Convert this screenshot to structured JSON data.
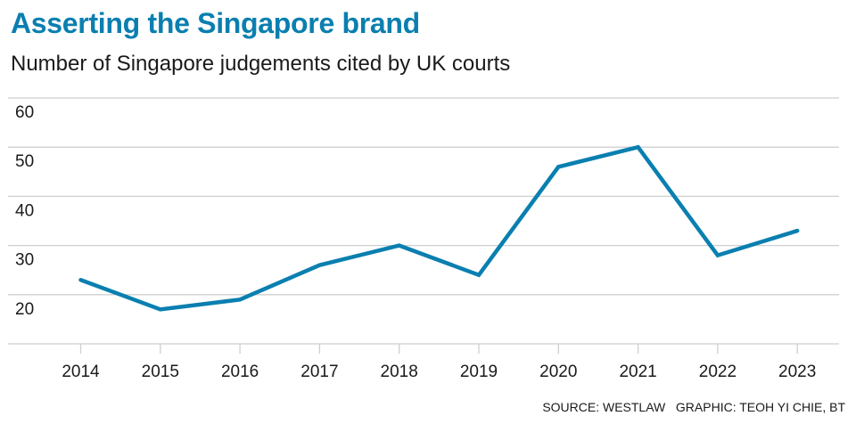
{
  "chart_data": {
    "type": "line",
    "title": "Asserting the Singapore brand",
    "subtitle": "Number of Singapore judgements cited by UK courts",
    "xlabel": "",
    "ylabel": "",
    "categories": [
      "2014",
      "2015",
      "2016",
      "2017",
      "2018",
      "2019",
      "2020",
      "2021",
      "2022",
      "2023"
    ],
    "values": [
      23,
      17,
      19,
      26,
      30,
      24,
      46,
      50,
      28,
      33
    ],
    "ylim": [
      10,
      60
    ],
    "yticks": [
      20,
      30,
      40,
      50,
      60
    ],
    "grid": true,
    "line_color": "#0a7fb0"
  },
  "footer": {
    "source": "SOURCE: WESTLAW   GRAPHIC: TEOH YI CHIE, BT"
  }
}
